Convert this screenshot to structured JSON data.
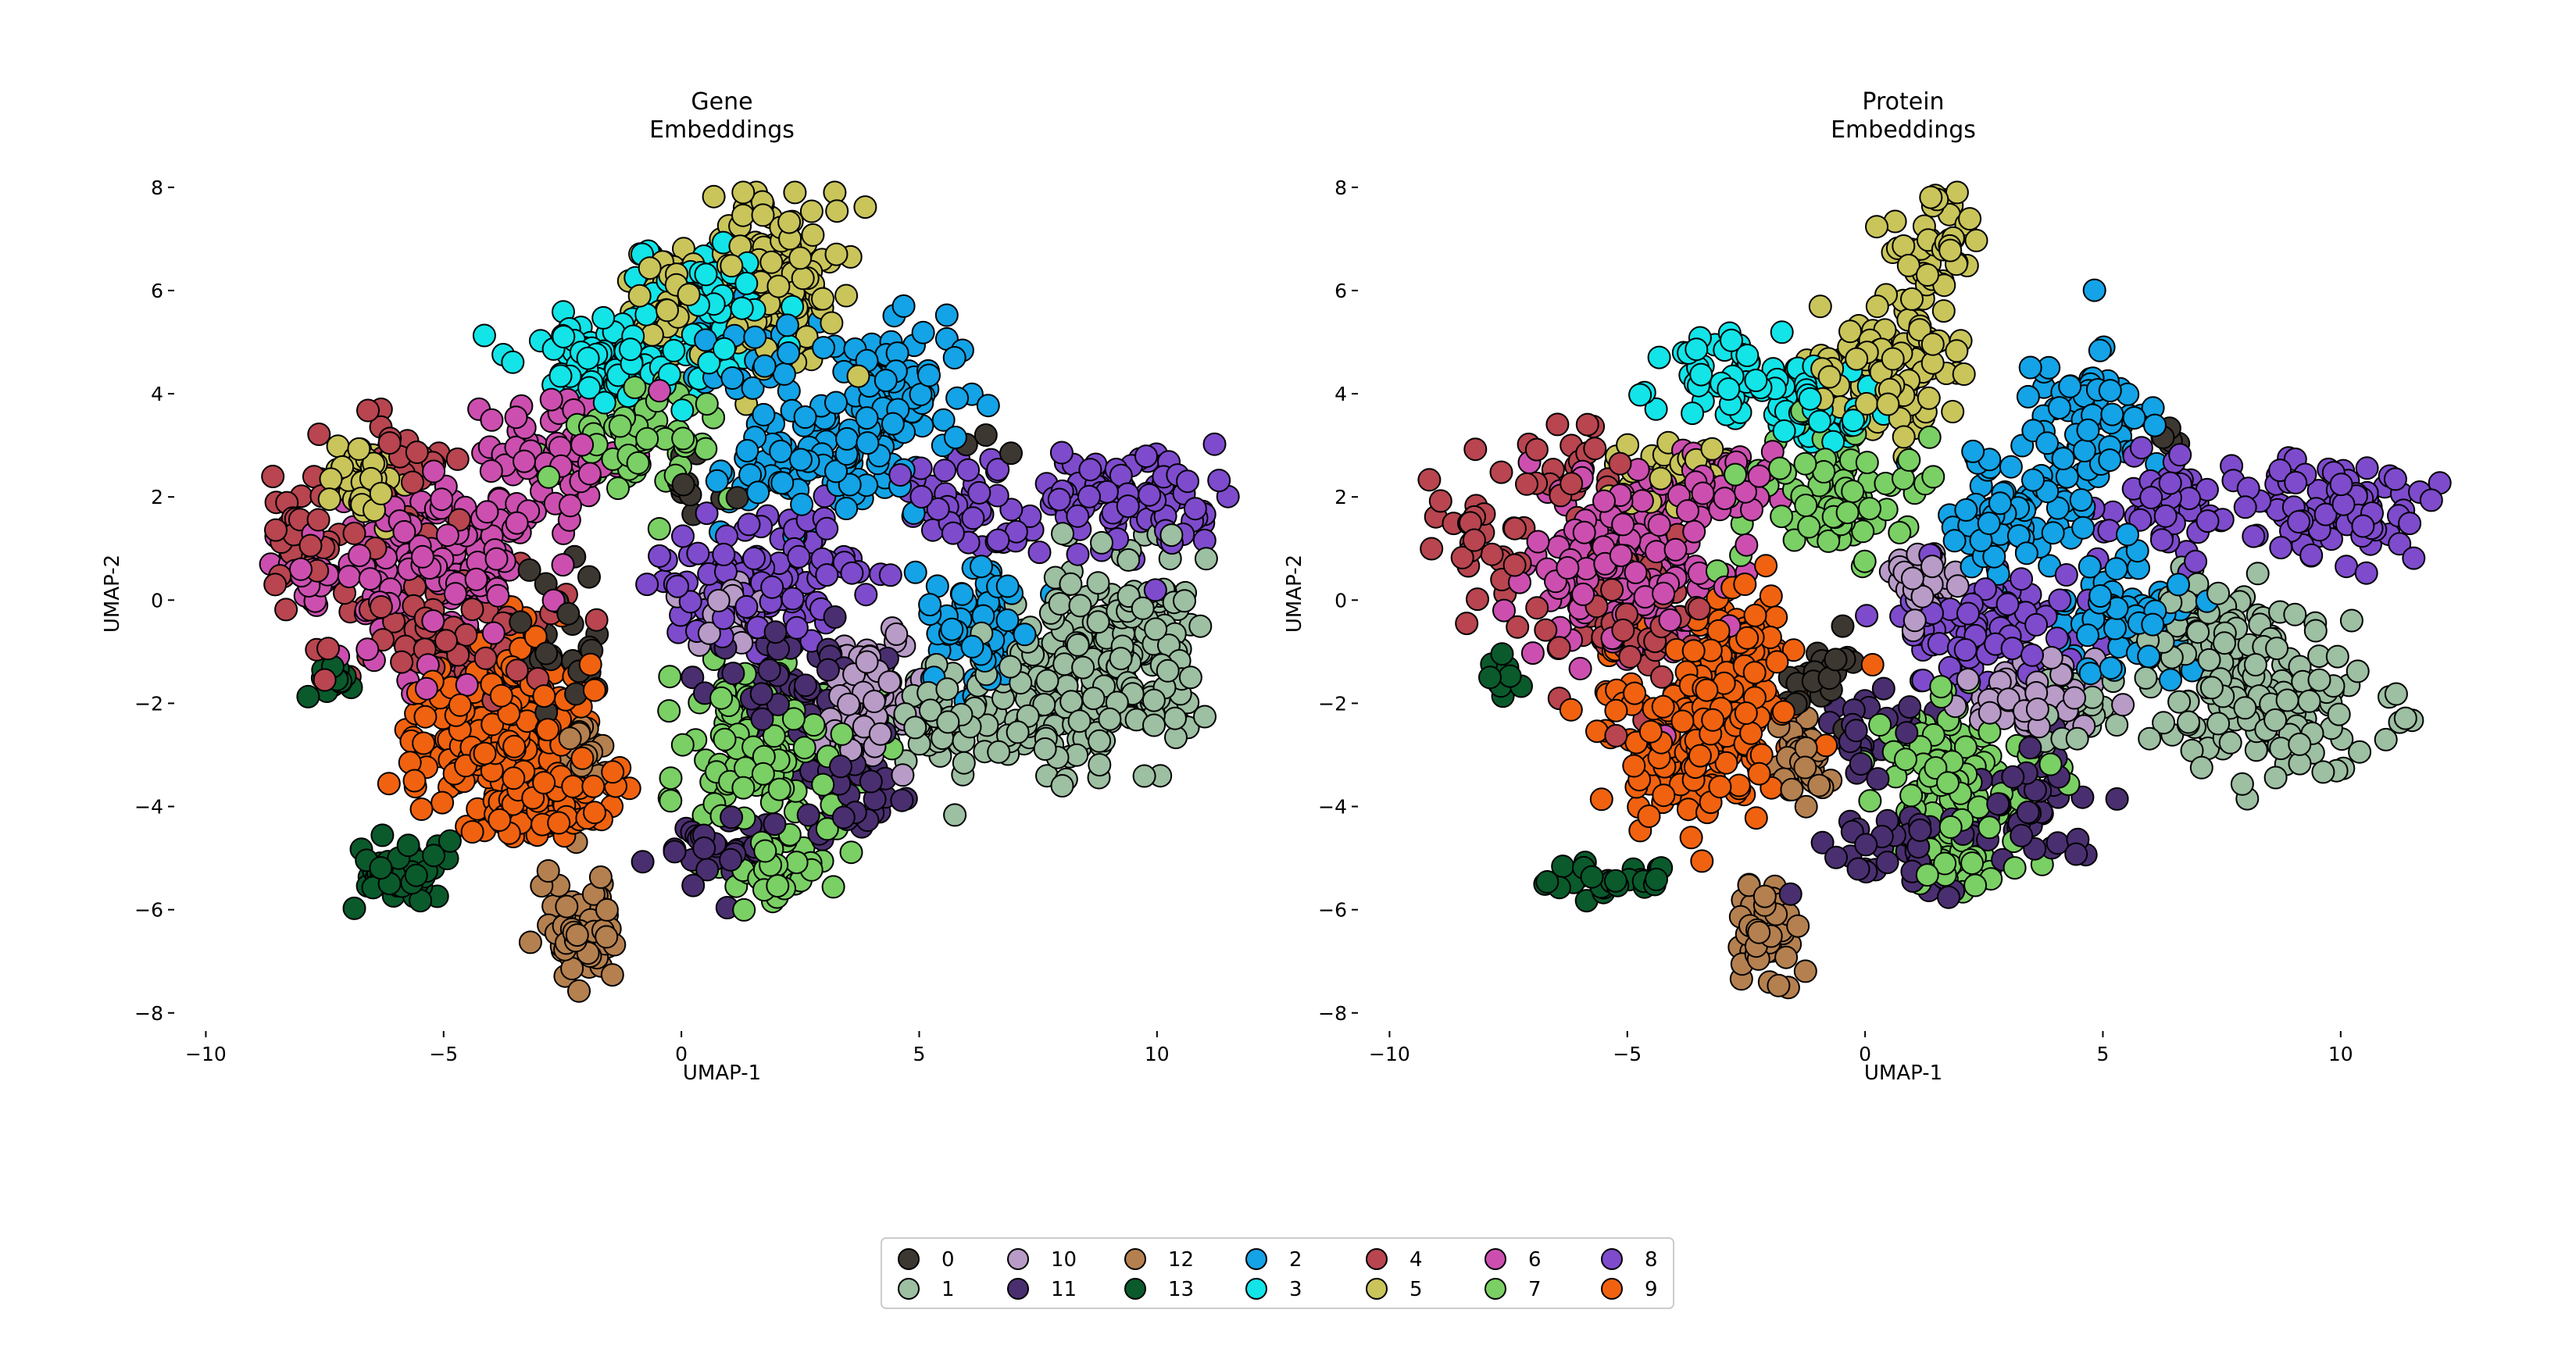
{
  "chart_data": {
    "type": "scatter",
    "marker": {
      "edge_color": "#000000",
      "shape": "circle"
    },
    "axes_style": {
      "spines": false,
      "grid": false
    },
    "legend": {
      "placement": "bottom-center",
      "ncol": 7,
      "entries": [
        {
          "label": "0",
          "color": "#3d3732"
        },
        {
          "label": "1",
          "color": "#9dbfa2"
        },
        {
          "label": "10",
          "color": "#b89cc7"
        },
        {
          "label": "11",
          "color": "#4a2f70"
        },
        {
          "label": "12",
          "color": "#b5804f"
        },
        {
          "label": "13",
          "color": "#0a5a2c"
        },
        {
          "label": "2",
          "color": "#13a3e6"
        },
        {
          "label": "3",
          "color": "#12e4e8"
        },
        {
          "label": "4",
          "color": "#b8454f"
        },
        {
          "label": "5",
          "color": "#c9c55a"
        },
        {
          "label": "6",
          "color": "#cc4fb0"
        },
        {
          "label": "7",
          "color": "#7ad064"
        },
        {
          "label": "8",
          "color": "#7e4bcd"
        },
        {
          "label": "9",
          "color": "#f0620f"
        }
      ]
    },
    "panels": [
      {
        "title_line1": "Gene",
        "title_line2": "Embeddings",
        "xlabel": "UMAP-1",
        "ylabel": "UMAP-2",
        "xlim": [
          -10.5,
          12.5
        ],
        "ylim": [
          -8.2,
          8.3
        ],
        "xticks": [
          -10,
          -5,
          0,
          5,
          10
        ],
        "yticks": [
          -8,
          -6,
          -4,
          -2,
          0,
          2,
          4,
          6,
          8
        ],
        "clusters": [
          {
            "label": "0",
            "n": 40,
            "blobs": [
              {
                "cx": -2.5,
                "cy": -1.0,
                "sx": 0.7,
                "sy": 1.0
              },
              {
                "cx": 0.3,
                "cy": 2.2,
                "sx": 0.6,
                "sy": 0.5
              },
              {
                "cx": 6.5,
                "cy": 3.0,
                "sx": 0.3,
                "sy": 0.3
              }
            ]
          },
          {
            "label": "1",
            "n": 330,
            "blobs": [
              {
                "cx": 7.8,
                "cy": -1.8,
                "sx": 1.4,
                "sy": 1.1
              },
              {
                "cx": 9.4,
                "cy": -1.0,
                "sx": 1.0,
                "sy": 1.4
              },
              {
                "cx": 5.5,
                "cy": -2.4,
                "sx": 0.9,
                "sy": 0.6
              }
            ]
          },
          {
            "label": "10",
            "n": 110,
            "blobs": [
              {
                "cx": 3.8,
                "cy": -2.4,
                "sx": 0.7,
                "sy": 0.6
              },
              {
                "cx": 1.0,
                "cy": -0.2,
                "sx": 0.6,
                "sy": 0.5
              },
              {
                "cx": 4.0,
                "cy": -1.5,
                "sx": 0.7,
                "sy": 0.6
              }
            ]
          },
          {
            "label": "11",
            "n": 130,
            "blobs": [
              {
                "cx": 0.7,
                "cy": -4.8,
                "sx": 1.0,
                "sy": 0.6
              },
              {
                "cx": 3.5,
                "cy": -3.5,
                "sx": 0.8,
                "sy": 1.0
              },
              {
                "cx": 2.2,
                "cy": -1.5,
                "sx": 1.3,
                "sy": 0.8
              }
            ]
          },
          {
            "label": "12",
            "n": 90,
            "blobs": [
              {
                "cx": -2.1,
                "cy": -6.4,
                "sx": 0.45,
                "sy": 0.7
              },
              {
                "cx": -2.1,
                "cy": -2.9,
                "sx": 0.3,
                "sy": 0.5
              }
            ]
          },
          {
            "label": "13",
            "n": 60,
            "blobs": [
              {
                "cx": -5.8,
                "cy": -5.2,
                "sx": 0.6,
                "sy": 0.45
              },
              {
                "cx": -7.5,
                "cy": -1.6,
                "sx": 0.3,
                "sy": 0.25
              }
            ]
          },
          {
            "label": "2",
            "n": 300,
            "blobs": [
              {
                "cx": 4.5,
                "cy": 4.0,
                "sx": 1.0,
                "sy": 1.0
              },
              {
                "cx": 2.7,
                "cy": 2.6,
                "sx": 1.2,
                "sy": 0.8
              },
              {
                "cx": 6.2,
                "cy": -0.5,
                "sx": 0.8,
                "sy": 0.9
              },
              {
                "cx": 1.5,
                "cy": 5.0,
                "sx": 0.8,
                "sy": 0.7
              }
            ]
          },
          {
            "label": "3",
            "n": 210,
            "blobs": [
              {
                "cx": -1.5,
                "cy": 4.6,
                "sx": 1.3,
                "sy": 0.6
              },
              {
                "cx": 0.5,
                "cy": 5.8,
                "sx": 1.0,
                "sy": 0.8
              }
            ]
          },
          {
            "label": "4",
            "n": 150,
            "blobs": [
              {
                "cx": -8.0,
                "cy": 1.3,
                "sx": 0.6,
                "sy": 0.8
              },
              {
                "cx": -6.0,
                "cy": 2.5,
                "sx": 0.8,
                "sy": 0.7
              },
              {
                "cx": -5.2,
                "cy": -0.5,
                "sx": 1.5,
                "sy": 1.0
              }
            ]
          },
          {
            "label": "5",
            "n": 260,
            "blobs": [
              {
                "cx": 1.8,
                "cy": 6.2,
                "sx": 1.0,
                "sy": 1.0
              },
              {
                "cx": -0.2,
                "cy": 5.8,
                "sx": 0.6,
                "sy": 0.6
              },
              {
                "cx": -6.5,
                "cy": 2.2,
                "sx": 0.6,
                "sy": 0.5
              }
            ]
          },
          {
            "label": "6",
            "n": 260,
            "blobs": [
              {
                "cx": -5.2,
                "cy": 0.8,
                "sx": 1.4,
                "sy": 1.3
              },
              {
                "cx": -2.8,
                "cy": 2.8,
                "sx": 1.0,
                "sy": 0.7
              },
              {
                "cx": -7.7,
                "cy": 0.6,
                "sx": 0.6,
                "sy": 0.4
              }
            ]
          },
          {
            "label": "7",
            "n": 240,
            "blobs": [
              {
                "cx": 1.6,
                "cy": -3.0,
                "sx": 1.3,
                "sy": 1.2
              },
              {
                "cx": 2.0,
                "cy": -5.2,
                "sx": 0.9,
                "sy": 0.5
              },
              {
                "cx": -0.8,
                "cy": 3.0,
                "sx": 1.0,
                "sy": 0.8
              }
            ]
          },
          {
            "label": "8",
            "n": 250,
            "blobs": [
              {
                "cx": 9.5,
                "cy": 2.0,
                "sx": 1.5,
                "sy": 0.7
              },
              {
                "cx": 6.0,
                "cy": 1.8,
                "sx": 1.0,
                "sy": 0.6
              },
              {
                "cx": 1.8,
                "cy": 0.2,
                "sx": 1.5,
                "sy": 0.9
              }
            ]
          },
          {
            "label": "9",
            "n": 320,
            "blobs": [
              {
                "cx": -3.8,
                "cy": -2.6,
                "sx": 1.2,
                "sy": 1.1
              },
              {
                "cx": -2.8,
                "cy": -4.0,
                "sx": 0.9,
                "sy": 0.5
              }
            ]
          }
        ]
      },
      {
        "title_line1": "Protein",
        "title_line2": "Embeddings",
        "xlabel": "UMAP-1",
        "ylabel": "UMAP-2",
        "xlim": [
          -10.5,
          12.5
        ],
        "ylim": [
          -8.2,
          8.3
        ],
        "xticks": [
          -10,
          -5,
          0,
          5,
          10
        ],
        "yticks": [
          -8,
          -6,
          -4,
          -2,
          0,
          2,
          4,
          6,
          8
        ],
        "clusters": [
          {
            "label": "0",
            "n": 30,
            "blobs": [
              {
                "cx": -1.0,
                "cy": -1.5,
                "sx": 0.6,
                "sy": 0.8
              },
              {
                "cx": 6.5,
                "cy": 3.0,
                "sx": 0.3,
                "sy": 0.3
              }
            ]
          },
          {
            "label": "1",
            "n": 230,
            "blobs": [
              {
                "cx": 8.5,
                "cy": -2.0,
                "sx": 1.5,
                "sy": 1.0
              },
              {
                "cx": 7.0,
                "cy": -0.5,
                "sx": 1.0,
                "sy": 0.7
              },
              {
                "cx": 4.5,
                "cy": -2.2,
                "sx": 0.6,
                "sy": 0.5
              }
            ]
          },
          {
            "label": "10",
            "n": 100,
            "blobs": [
              {
                "cx": 3.5,
                "cy": -2.0,
                "sx": 0.8,
                "sy": 0.6
              },
              {
                "cx": 1.2,
                "cy": 0.2,
                "sx": 0.6,
                "sy": 0.5
              }
            ]
          },
          {
            "label": "11",
            "n": 130,
            "blobs": [
              {
                "cx": 1.0,
                "cy": -4.8,
                "sx": 1.2,
                "sy": 0.6
              },
              {
                "cx": 3.6,
                "cy": -4.0,
                "sx": 0.7,
                "sy": 0.8
              },
              {
                "cx": 0.2,
                "cy": -2.5,
                "sx": 0.6,
                "sy": 0.6
              }
            ]
          },
          {
            "label": "12",
            "n": 80,
            "blobs": [
              {
                "cx": -2.1,
                "cy": -6.4,
                "sx": 0.45,
                "sy": 0.6
              },
              {
                "cx": -1.3,
                "cy": -3.2,
                "sx": 0.4,
                "sy": 0.5
              }
            ]
          },
          {
            "label": "13",
            "n": 40,
            "blobs": [
              {
                "cx": -5.4,
                "cy": -5.4,
                "sx": 0.8,
                "sy": 0.25
              },
              {
                "cx": -7.6,
                "cy": -1.6,
                "sx": 0.3,
                "sy": 0.3
              }
            ]
          },
          {
            "label": "2",
            "n": 220,
            "blobs": [
              {
                "cx": 4.8,
                "cy": 3.5,
                "sx": 0.8,
                "sy": 1.0
              },
              {
                "cx": 3.0,
                "cy": 1.5,
                "sx": 1.0,
                "sy": 0.8
              },
              {
                "cx": 5.5,
                "cy": -0.2,
                "sx": 0.9,
                "sy": 0.8
              }
            ]
          },
          {
            "label": "3",
            "n": 110,
            "blobs": [
              {
                "cx": -2.5,
                "cy": 4.2,
                "sx": 1.1,
                "sy": 0.6
              },
              {
                "cx": -1.0,
                "cy": 3.6,
                "sx": 0.8,
                "sy": 0.5
              }
            ]
          },
          {
            "label": "4",
            "n": 120,
            "blobs": [
              {
                "cx": -8.0,
                "cy": 1.3,
                "sx": 0.7,
                "sy": 0.8
              },
              {
                "cx": -6.0,
                "cy": 2.6,
                "sx": 0.7,
                "sy": 0.6
              },
              {
                "cx": -5.0,
                "cy": -0.3,
                "sx": 1.2,
                "sy": 1.0
              }
            ]
          },
          {
            "label": "5",
            "n": 190,
            "blobs": [
              {
                "cx": 0.5,
                "cy": 4.5,
                "sx": 1.1,
                "sy": 1.0
              },
              {
                "cx": 1.5,
                "cy": 6.8,
                "sx": 0.6,
                "sy": 0.8
              },
              {
                "cx": -4.3,
                "cy": 2.5,
                "sx": 0.8,
                "sy": 0.5
              }
            ]
          },
          {
            "label": "6",
            "n": 240,
            "blobs": [
              {
                "cx": -5.0,
                "cy": 0.5,
                "sx": 1.4,
                "sy": 1.2
              },
              {
                "cx": -3.0,
                "cy": 2.2,
                "sx": 0.8,
                "sy": 0.6
              }
            ]
          },
          {
            "label": "7",
            "n": 230,
            "blobs": [
              {
                "cx": 1.8,
                "cy": -3.5,
                "sx": 1.2,
                "sy": 1.3
              },
              {
                "cx": -0.5,
                "cy": 2.0,
                "sx": 1.2,
                "sy": 0.9
              },
              {
                "cx": 2.0,
                "cy": -5.2,
                "sx": 0.8,
                "sy": 0.4
              }
            ]
          },
          {
            "label": "8",
            "n": 230,
            "blobs": [
              {
                "cx": 9.8,
                "cy": 1.8,
                "sx": 1.4,
                "sy": 0.7
              },
              {
                "cx": 6.3,
                "cy": 1.9,
                "sx": 0.9,
                "sy": 0.6
              },
              {
                "cx": 2.5,
                "cy": -0.5,
                "sx": 1.3,
                "sy": 0.7
              }
            ]
          },
          {
            "label": "9",
            "n": 260,
            "blobs": [
              {
                "cx": -3.5,
                "cy": -2.5,
                "sx": 1.3,
                "sy": 1.2
              },
              {
                "cx": -2.5,
                "cy": -0.8,
                "sx": 0.7,
                "sy": 0.7
              }
            ]
          }
        ]
      }
    ]
  }
}
